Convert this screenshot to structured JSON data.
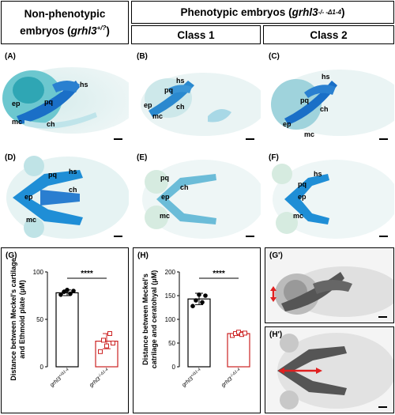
{
  "headers": {
    "left_line1": "Non-phenotypic",
    "left_line2_prefix": "embryos (",
    "left_gene": "grhl3",
    "left_sup": "+/?",
    "left_suffix": ")",
    "top_prefix": "Phenotypic embryos (",
    "top_gene": "grhl3",
    "top_sup": "-/- -Δ1-4",
    "top_suffix": ")",
    "class1": "Class 1",
    "class2": "Class 2"
  },
  "panels": {
    "A": {
      "label": "(A)",
      "annotations": [
        "ep",
        "pq",
        "hs",
        "mc",
        "ch"
      ]
    },
    "B": {
      "label": "(B)",
      "annotations": [
        "hs",
        "pq",
        "ep",
        "ch",
        "mc"
      ]
    },
    "C": {
      "label": "(C)",
      "annotations": [
        "hs",
        "pq",
        "ch",
        "ep",
        "mc"
      ]
    },
    "D": {
      "label": "(D)",
      "annotations": [
        "pq",
        "hs",
        "ch",
        "ep",
        "mc"
      ]
    },
    "E": {
      "label": "(E)",
      "annotations": [
        "pq",
        "ch",
        "ep",
        "mc"
      ]
    },
    "F": {
      "label": "(F)",
      "annotations": [
        "hs",
        "pq",
        "ep",
        "mc"
      ]
    },
    "G_prime": {
      "label": "(G')"
    },
    "H_prime": {
      "label": "(H')"
    }
  },
  "chart_data": [
    {
      "panel": "(G)",
      "type": "bar",
      "categories": [
        "grhl3+/Δ1-4",
        "grhl3-/-Δ1-4"
      ],
      "category_gene": "grhl3",
      "category_sups": [
        "+/Δ1-4",
        "-/-Δ1-4"
      ],
      "ylabel_line1": "Distance between Meckel's cartilage",
      "ylabel_line2": "and Ethmoid plate (μM)",
      "ylim": [
        0,
        100
      ],
      "ticks": [
        "0",
        "50",
        "100"
      ],
      "tick_values": [
        0,
        50,
        100
      ],
      "values": [
        78,
        27
      ],
      "errors": [
        3,
        8
      ],
      "points": [
        [
          76,
          79,
          81,
          77,
          80
        ],
        [
          16,
          28,
          22,
          35,
          25
        ]
      ],
      "colors": [
        "#000000",
        "#cc2222"
      ],
      "significance": "****"
    },
    {
      "panel": "(H)",
      "type": "bar",
      "categories": [
        "grhl3+/Δ1-4",
        "grhl3-/-Δ1-4"
      ],
      "category_gene": "grhl3",
      "category_sups": [
        "+/Δ1-4",
        "-/-Δ1-4"
      ],
      "ylabel_line1": "Distance between Meckel's",
      "ylabel_line2": "catrilage and ceratohyal (μM)",
      "ylim": [
        0,
        200
      ],
      "ticks": [
        "0",
        "50",
        "100",
        "150",
        "200"
      ],
      "tick_values": [
        0,
        50,
        100,
        150,
        200
      ],
      "values": [
        143,
        70
      ],
      "errors": [
        12,
        4
      ],
      "points": [
        [
          128,
          140,
          152,
          136,
          150
        ],
        [
          66,
          70,
          73,
          68,
          71
        ]
      ],
      "colors": [
        "#000000",
        "#cc2222"
      ],
      "significance": "****"
    }
  ]
}
